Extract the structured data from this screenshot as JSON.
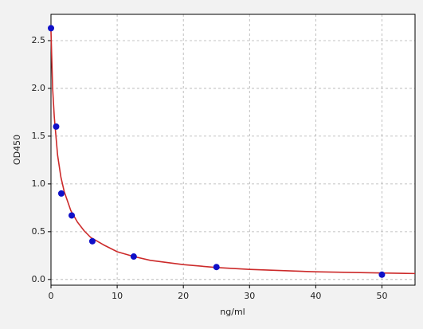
{
  "chart_data": {
    "type": "scatter",
    "x_label": "ng/ml",
    "y_label": "OD450",
    "xlim": [
      0,
      55
    ],
    "xticks": [
      0,
      10,
      20,
      30,
      40,
      50
    ],
    "ylim": [
      -0.06,
      2.775
    ],
    "yticks": [
      {
        "value": 0,
        "label": "0.0"
      },
      0.5,
      {
        "value": 1,
        "label": "1.0"
      },
      1.5,
      {
        "value": 2,
        "label": "2.0"
      },
      2.5
    ],
    "grid": true,
    "series": [
      {
        "type": "scatter",
        "color": "#1010c8",
        "x": [
          0,
          0.78,
          1.56,
          3.13,
          6.25,
          12.5,
          25,
          50
        ],
        "values": [
          2.63,
          1.6,
          0.9,
          0.67,
          0.4,
          0.24,
          0.13,
          0.05
        ]
      },
      {
        "type": "line",
        "color": "#cc2a2a",
        "x": [
          0,
          0.25,
          0.5,
          1,
          1.5,
          2,
          3,
          4,
          5,
          6,
          8,
          10,
          12.5,
          15,
          20,
          25,
          30,
          40,
          50,
          55
        ],
        "values": [
          2.6,
          2.0,
          1.7,
          1.3,
          1.07,
          0.92,
          0.72,
          0.6,
          0.51,
          0.44,
          0.36,
          0.29,
          0.24,
          0.2,
          0.155,
          0.125,
          0.105,
          0.08,
          0.068,
          0.062
        ]
      }
    ]
  }
}
